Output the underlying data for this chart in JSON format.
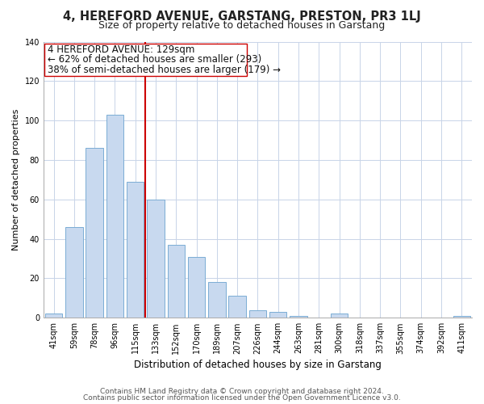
{
  "title": "4, HEREFORD AVENUE, GARSTANG, PRESTON, PR3 1LJ",
  "subtitle": "Size of property relative to detached houses in Garstang",
  "xlabel": "Distribution of detached houses by size in Garstang",
  "ylabel": "Number of detached properties",
  "bar_labels": [
    "41sqm",
    "59sqm",
    "78sqm",
    "96sqm",
    "115sqm",
    "133sqm",
    "152sqm",
    "170sqm",
    "189sqm",
    "207sqm",
    "226sqm",
    "244sqm",
    "263sqm",
    "281sqm",
    "300sqm",
    "318sqm",
    "337sqm",
    "355sqm",
    "374sqm",
    "392sqm",
    "411sqm"
  ],
  "bar_values": [
    2,
    46,
    86,
    103,
    69,
    60,
    37,
    31,
    18,
    11,
    4,
    3,
    1,
    0,
    2,
    0,
    0,
    0,
    0,
    0,
    1
  ],
  "bar_color": "#c8d9ef",
  "bar_edge_color": "#7badd4",
  "vline_color": "#cc0000",
  "ann_line1": "4 HEREFORD AVENUE: 129sqm",
  "ann_line2": "← 62% of detached houses are smaller (293)",
  "ann_line3": "38% of semi-detached houses are larger (179) →",
  "ylim": [
    0,
    140
  ],
  "yticks": [
    0,
    20,
    40,
    60,
    80,
    100,
    120,
    140
  ],
  "footer_line1": "Contains HM Land Registry data © Crown copyright and database right 2024.",
  "footer_line2": "Contains public sector information licensed under the Open Government Licence v3.0.",
  "bg_color": "#ffffff",
  "grid_color": "#c8d4e8",
  "title_fontsize": 10.5,
  "subtitle_fontsize": 9,
  "xlabel_fontsize": 8.5,
  "ylabel_fontsize": 8,
  "tick_fontsize": 7,
  "annotation_fontsize": 8.5,
  "footer_fontsize": 6.5
}
